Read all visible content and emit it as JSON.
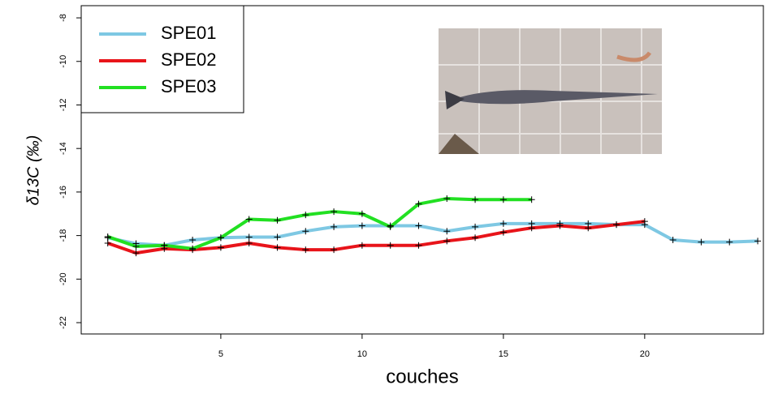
{
  "chart_data": {
    "type": "line",
    "x_label": "couches",
    "y_label": "δ13C (‰)",
    "x": [
      1,
      2,
      3,
      4,
      5,
      6,
      7,
      8,
      9,
      10,
      11,
      12,
      13,
      14,
      15,
      16,
      17,
      18,
      19,
      20,
      21,
      22,
      23,
      24
    ],
    "series": [
      {
        "name": "SPE01",
        "color": "#7ec8e3",
        "values": [
          -18.1,
          -18.37,
          -18.45,
          -18.2,
          -18.1,
          -18.07,
          -18.07,
          -17.8,
          -17.6,
          -17.55,
          -17.55,
          -17.55,
          -17.8,
          -17.6,
          -17.45,
          -17.45,
          -17.45,
          -17.45,
          -17.5,
          -17.5,
          -18.2,
          -18.3,
          -18.3,
          -18.25
        ]
      },
      {
        "name": "SPE02",
        "color": "#e8141a",
        "values": [
          -18.35,
          -18.8,
          -18.6,
          -18.65,
          -18.55,
          -18.35,
          -18.55,
          -18.65,
          -18.65,
          -18.45,
          -18.45,
          -18.45,
          -18.25,
          -18.1,
          -17.85,
          -17.65,
          -17.55,
          -17.65,
          -17.5,
          -17.35,
          null,
          null,
          null,
          null
        ]
      },
      {
        "name": "SPE03",
        "color": "#22e022",
        "values": [
          -18.05,
          -18.5,
          -18.45,
          -18.6,
          -18.1,
          -17.25,
          -17.3,
          -17.05,
          -16.9,
          -17.0,
          -17.6,
          -16.55,
          -16.3,
          -16.35,
          -16.35,
          -16.35,
          null,
          null,
          null,
          null,
          null,
          null,
          null,
          null
        ]
      }
    ],
    "xlim": [
      0.06,
      24.2
    ],
    "ylim": [
      -22.52,
      -7.44
    ],
    "xticks": [
      5,
      10,
      15,
      20
    ],
    "yticks": [
      -22,
      -20,
      -18,
      -16,
      -14,
      -12,
      -10,
      -8
    ],
    "legend": "top-left",
    "markers": "cross"
  }
}
